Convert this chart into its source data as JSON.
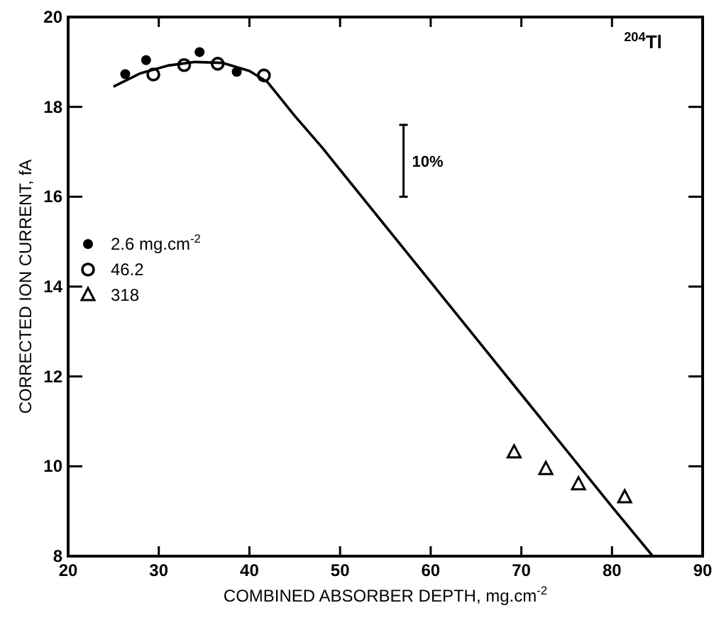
{
  "chart_data": {
    "type": "scatter",
    "xlabel": "COMBINED ABSORBER DEPTH, mg.cm$^{-2}$",
    "ylabel": "CORRECTED ION CURRENT, fA",
    "xlim": [
      20,
      90
    ],
    "xticks": [
      20,
      30,
      40,
      50,
      60,
      70,
      80,
      90
    ],
    "ylim": [
      8,
      20
    ],
    "yticks": [
      8,
      10,
      12,
      14,
      16,
      18,
      20
    ],
    "legend": "left",
    "series": [
      {
        "name": "2.6 mg.cm$^{-2}$",
        "color": "#000000",
        "marker": "circle",
        "x": [
          26.3,
          28.6,
          34.5,
          38.6
        ],
        "values": [
          18.73,
          19.04,
          19.22,
          18.78
        ]
      },
      {
        "name": "46.2",
        "color": "#000000",
        "marker": "circle-open",
        "x": [
          29.4,
          32.8,
          36.5,
          41.6
        ],
        "values": [
          18.72,
          18.93,
          18.96,
          18.7
        ]
      },
      {
        "name": "318",
        "color": "#000000",
        "marker": "triangle",
        "x": [
          69.2,
          72.7,
          76.3,
          81.4
        ],
        "values": [
          10.31,
          9.94,
          9.6,
          9.31
        ]
      },
      {
        "type": "line",
        "color": "#000000",
        "marker": "none",
        "x": [
          25,
          28,
          31,
          34,
          37,
          40,
          42,
          43,
          45,
          48,
          50,
          60,
          70,
          80,
          84.5
        ],
        "values": [
          18.45,
          18.75,
          18.92,
          19.0,
          18.98,
          18.8,
          18.55,
          18.3,
          17.8,
          17.1,
          16.6,
          14.1,
          11.6,
          9.1,
          8.0
        ]
      }
    ],
    "annotations": [
      "$^{204}$Tl",
      "10%"
    ]
  }
}
